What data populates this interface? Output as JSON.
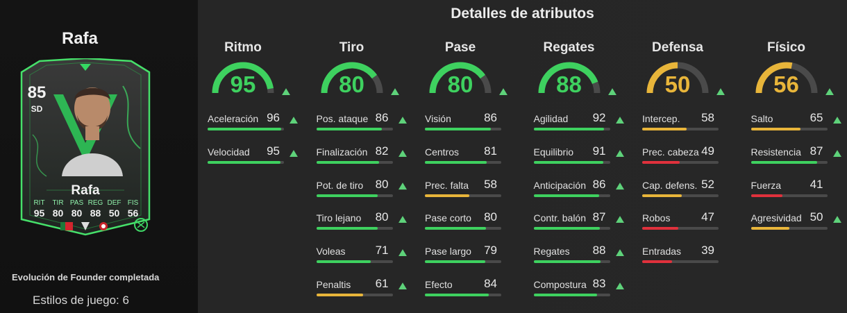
{
  "player": {
    "name": "Rafa",
    "card": {
      "rating": "85",
      "position": "SD",
      "name": "Rafa",
      "stat_labels": [
        "RIT",
        "TIR",
        "PAS",
        "REG",
        "DEF",
        "FIS"
      ],
      "stat_values": [
        "95",
        "80",
        "80",
        "88",
        "50",
        "56"
      ]
    },
    "evolution": "Evolución de Founder completada",
    "playstyles": "Estilos de juego: 6"
  },
  "section_title": "Detalles de atributos",
  "colors": {
    "high": "#3ed15f",
    "mid": "#e8b53a",
    "low": "#e0313c",
    "track": "#4a4a4a",
    "arrow": "#5ed27a"
  },
  "categories": [
    {
      "name": "Ritmo",
      "value": 95,
      "attributes": [
        {
          "name": "Aceleración",
          "value": 96,
          "upgraded": true
        },
        {
          "name": "Velocidad",
          "value": 95,
          "upgraded": true
        }
      ]
    },
    {
      "name": "Tiro",
      "value": 80,
      "attributes": [
        {
          "name": "Pos. ataque",
          "value": 86,
          "upgraded": true
        },
        {
          "name": "Finalización",
          "value": 82,
          "upgraded": true
        },
        {
          "name": "Pot. de tiro",
          "value": 80,
          "upgraded": true
        },
        {
          "name": "Tiro lejano",
          "value": 80,
          "upgraded": true
        },
        {
          "name": "Voleas",
          "value": 71,
          "upgraded": true
        },
        {
          "name": "Penaltis",
          "value": 61,
          "upgraded": true
        }
      ]
    },
    {
      "name": "Pase",
      "value": 80,
      "attributes": [
        {
          "name": "Visión",
          "value": 86,
          "upgraded": false
        },
        {
          "name": "Centros",
          "value": 81,
          "upgraded": false
        },
        {
          "name": "Prec. falta",
          "value": 58,
          "upgraded": false
        },
        {
          "name": "Pase corto",
          "value": 80,
          "upgraded": false
        },
        {
          "name": "Pase largo",
          "value": 79,
          "upgraded": false
        },
        {
          "name": "Efecto",
          "value": 84,
          "upgraded": false
        }
      ]
    },
    {
      "name": "Regates",
      "value": 88,
      "attributes": [
        {
          "name": "Agilidad",
          "value": 92,
          "upgraded": true
        },
        {
          "name": "Equilibrio",
          "value": 91,
          "upgraded": true
        },
        {
          "name": "Anticipación",
          "value": 86,
          "upgraded": true
        },
        {
          "name": "Contr. balón",
          "value": 87,
          "upgraded": true
        },
        {
          "name": "Regates",
          "value": 88,
          "upgraded": true
        },
        {
          "name": "Compostura",
          "value": 83,
          "upgraded": true
        }
      ]
    },
    {
      "name": "Defensa",
      "value": 50,
      "attributes": [
        {
          "name": "Intercep.",
          "value": 58,
          "upgraded": false
        },
        {
          "name": "Prec. cabeza",
          "value": 49,
          "upgraded": false
        },
        {
          "name": "Cap. defens.",
          "value": 52,
          "upgraded": false
        },
        {
          "name": "Robos",
          "value": 47,
          "upgraded": false
        },
        {
          "name": "Entradas",
          "value": 39,
          "upgraded": false
        }
      ]
    },
    {
      "name": "Físico",
      "value": 56,
      "attributes": [
        {
          "name": "Salto",
          "value": 65,
          "upgraded": true
        },
        {
          "name": "Resistencia",
          "value": 87,
          "upgraded": true
        },
        {
          "name": "Fuerza",
          "value": 41,
          "upgraded": false
        },
        {
          "name": "Agresividad",
          "value": 50,
          "upgraded": true
        }
      ]
    }
  ]
}
